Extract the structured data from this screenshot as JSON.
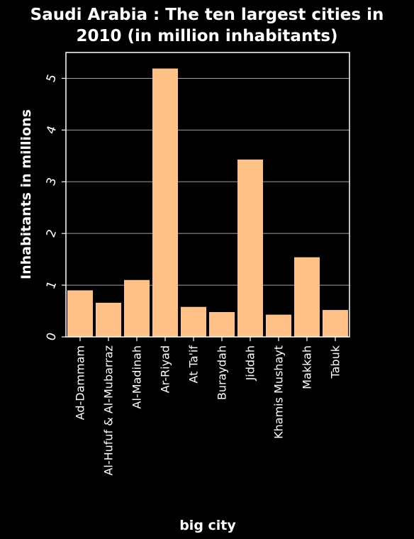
{
  "colors": {
    "background": "#000000",
    "bar": "#ffc185",
    "text": "#ffffff",
    "grid": "#a0a0a0"
  },
  "chart_data": {
    "type": "bar",
    "title_lines": [
      "Saudi Arabia : The ten largest cities in",
      "2010 (in million inhabitants)"
    ],
    "xlabel": "big city",
    "ylabel": "Inhabitants in millions",
    "categories": [
      "Ad-Dammam",
      "Al-Hufuf & Al-Mubarraz",
      "Al-Madinah",
      "Ar-Riyad",
      "At Ta'if",
      "Buraydah",
      "Jiddah",
      "Khamis Mushayt",
      "Makkah",
      "Tabuk"
    ],
    "values": [
      0.9,
      0.66,
      1.1,
      5.19,
      0.58,
      0.48,
      3.43,
      0.43,
      1.54,
      0.52
    ],
    "yticks": [
      0,
      1,
      2,
      3,
      4,
      5
    ],
    "ylim": [
      0,
      5.5
    ],
    "grid": true
  }
}
